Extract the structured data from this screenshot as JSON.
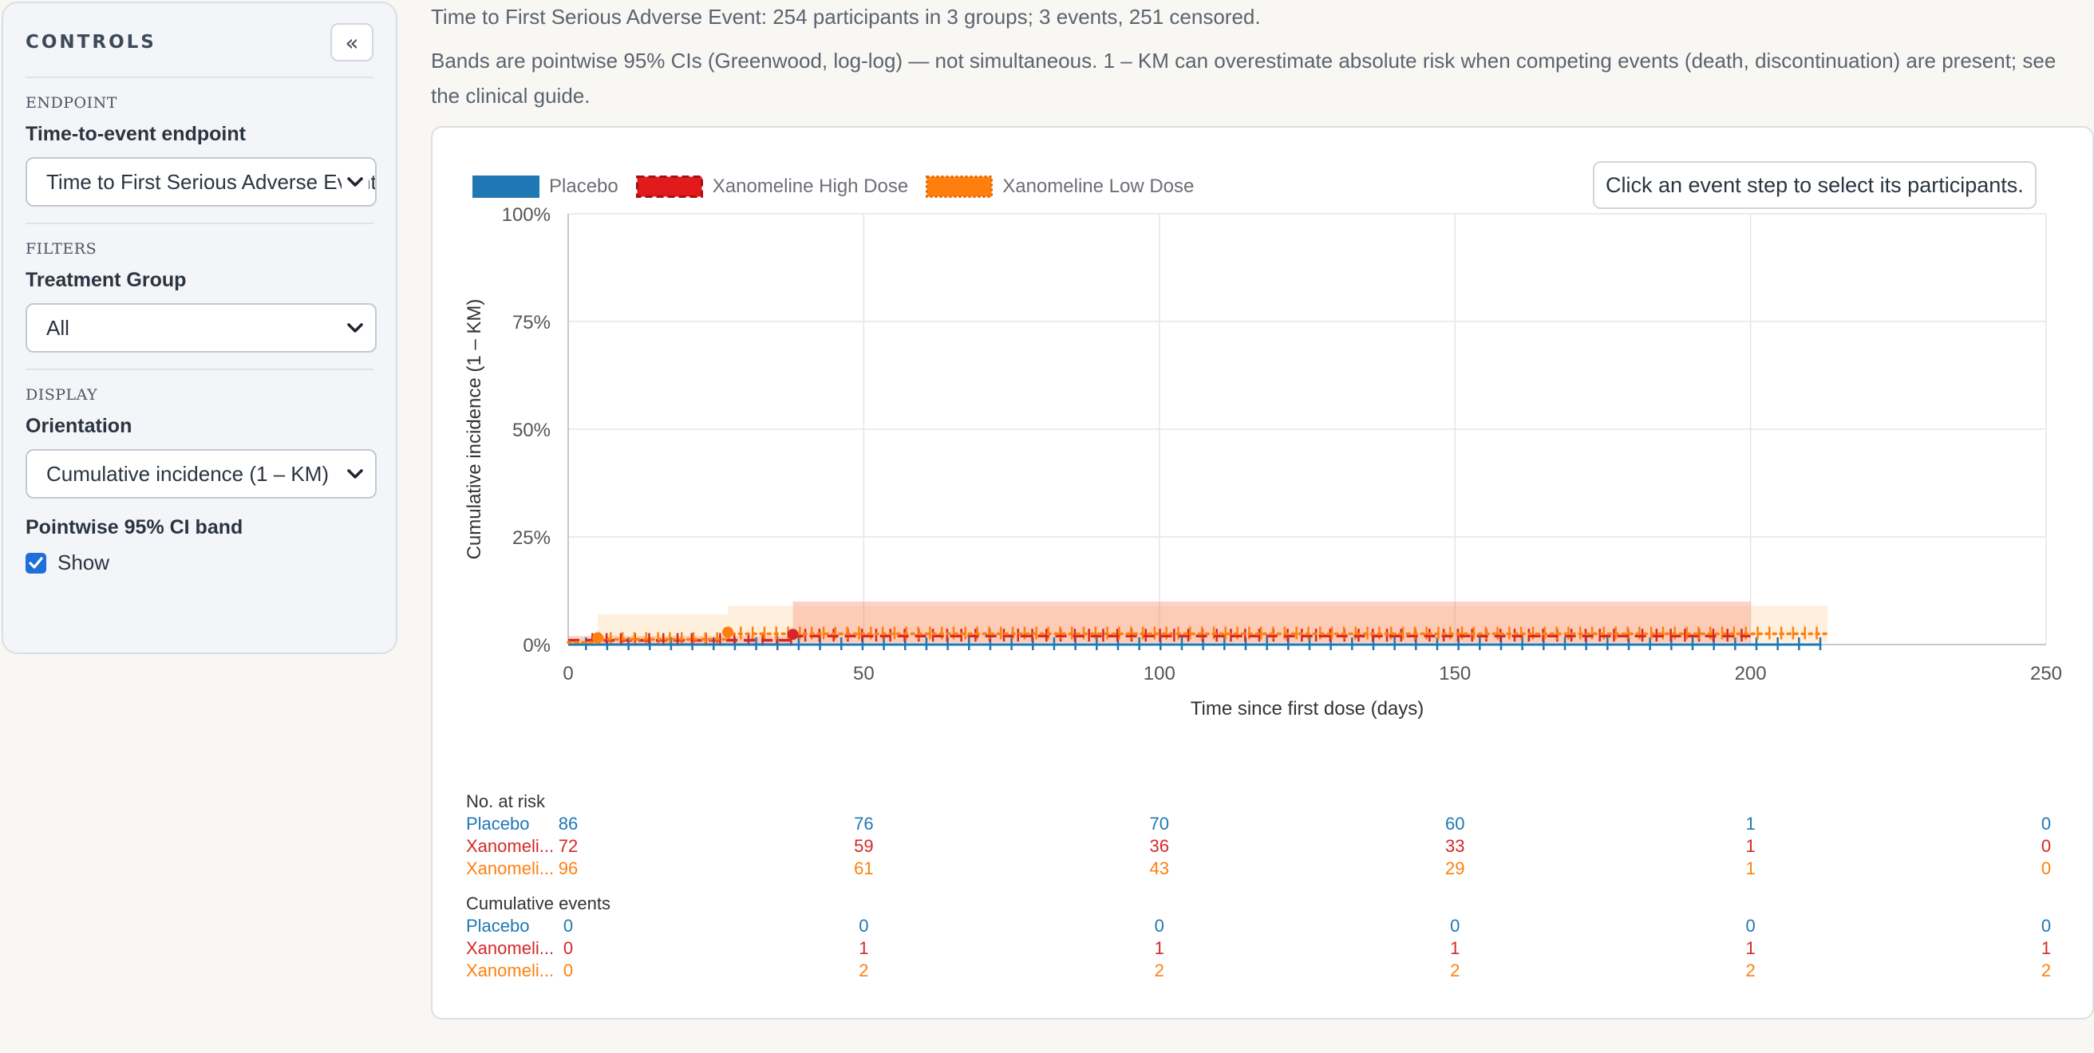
{
  "sidebar": {
    "title": "CONTROLS",
    "collapse_label": "«",
    "sections": {
      "endpoint": {
        "label": "ENDPOINT",
        "field_label": "Time-to-event endpoint",
        "selected": "Time to First Serious Adverse Event"
      },
      "filters": {
        "label": "FILTERS",
        "field_label": "Treatment Group",
        "selected": "All"
      },
      "display": {
        "label": "DISPLAY",
        "field_label": "Orientation",
        "selected": "Cumulative incidence (1 – KM)",
        "ci_label": "Pointwise 95% CI band",
        "ci_checkbox_label": "Show",
        "ci_checked": true
      }
    }
  },
  "main": {
    "summary": "Time to First Serious Adverse Event: 254 participants in 3 groups; 3 events, 251 censored.",
    "note": "Bands are pointwise 95% CIs (Greenwood, log-log) — not simultaneous. 1 – KM can overestimate absolute risk when competing events (death, discontinuation) are present; see the clinical guide.",
    "hint": "Click an event step to select its participants."
  },
  "colors": {
    "placebo": "#1f77b4",
    "high": "#d62728",
    "low": "#ff7f0e"
  },
  "chart_data": {
    "type": "line",
    "xlabel": "Time since first dose (days)",
    "ylabel": "Cumulative incidence (1 – KM)",
    "xlim": [
      0,
      250
    ],
    "ylim": [
      0,
      1
    ],
    "x_ticks": [
      "0",
      "50",
      "100",
      "150",
      "200",
      "250"
    ],
    "y_ticks": [
      "0%",
      "25%",
      "50%",
      "75%",
      "100%"
    ],
    "legend_position": "top-left",
    "grid": true,
    "series": [
      {
        "name": "Placebo",
        "key": "placebo",
        "style": "solid",
        "steps": [
          [
            0,
            0
          ],
          [
            212,
            0
          ]
        ],
        "band": []
      },
      {
        "name": "Xanomeline High Dose",
        "key": "high",
        "style": "dashed",
        "steps": [
          [
            0,
            0.01
          ],
          [
            38,
            0.01
          ],
          [
            38,
            0.02
          ],
          [
            200,
            0.02
          ]
        ],
        "band": [
          [
            0,
            0,
            0.02
          ],
          [
            38,
            0,
            0.02
          ],
          [
            38,
            0.004,
            0.1
          ],
          [
            200,
            0.004,
            0.1
          ]
        ]
      },
      {
        "name": "Xanomeline Low Dose",
        "key": "low",
        "style": "dotted",
        "steps": [
          [
            0,
            0.005
          ],
          [
            5,
            0.005
          ],
          [
            5,
            0.012
          ],
          [
            27,
            0.012
          ],
          [
            27,
            0.025
          ],
          [
            213,
            0.025
          ]
        ],
        "band": [
          [
            0,
            0,
            0.015
          ],
          [
            5,
            0,
            0.015
          ],
          [
            5,
            0.001,
            0.07
          ],
          [
            27,
            0.001,
            0.07
          ],
          [
            27,
            0.005,
            0.09
          ],
          [
            213,
            0.005,
            0.09
          ]
        ]
      }
    ],
    "risk_table": {
      "at_risk_label": "No. at risk",
      "events_label": "Cumulative events",
      "times": [
        0,
        50,
        100,
        150,
        200,
        250
      ],
      "rows": [
        {
          "name": "Placebo",
          "short": "Placebo",
          "key": "placebo",
          "at_risk": [
            "86",
            "76",
            "70",
            "60",
            "1",
            "0"
          ],
          "events": [
            "0",
            "0",
            "0",
            "0",
            "0",
            "0"
          ]
        },
        {
          "name": "Xanomeline High Dose",
          "short": "Xanomeli...",
          "key": "high",
          "at_risk": [
            "72",
            "59",
            "36",
            "33",
            "1",
            "0"
          ],
          "events": [
            "0",
            "1",
            "1",
            "1",
            "1",
            "1"
          ]
        },
        {
          "name": "Xanomeline Low Dose",
          "short": "Xanomeli...",
          "key": "low",
          "at_risk": [
            "96",
            "61",
            "43",
            "29",
            "1",
            "0"
          ],
          "events": [
            "0",
            "2",
            "2",
            "2",
            "2",
            "2"
          ]
        }
      ]
    }
  }
}
